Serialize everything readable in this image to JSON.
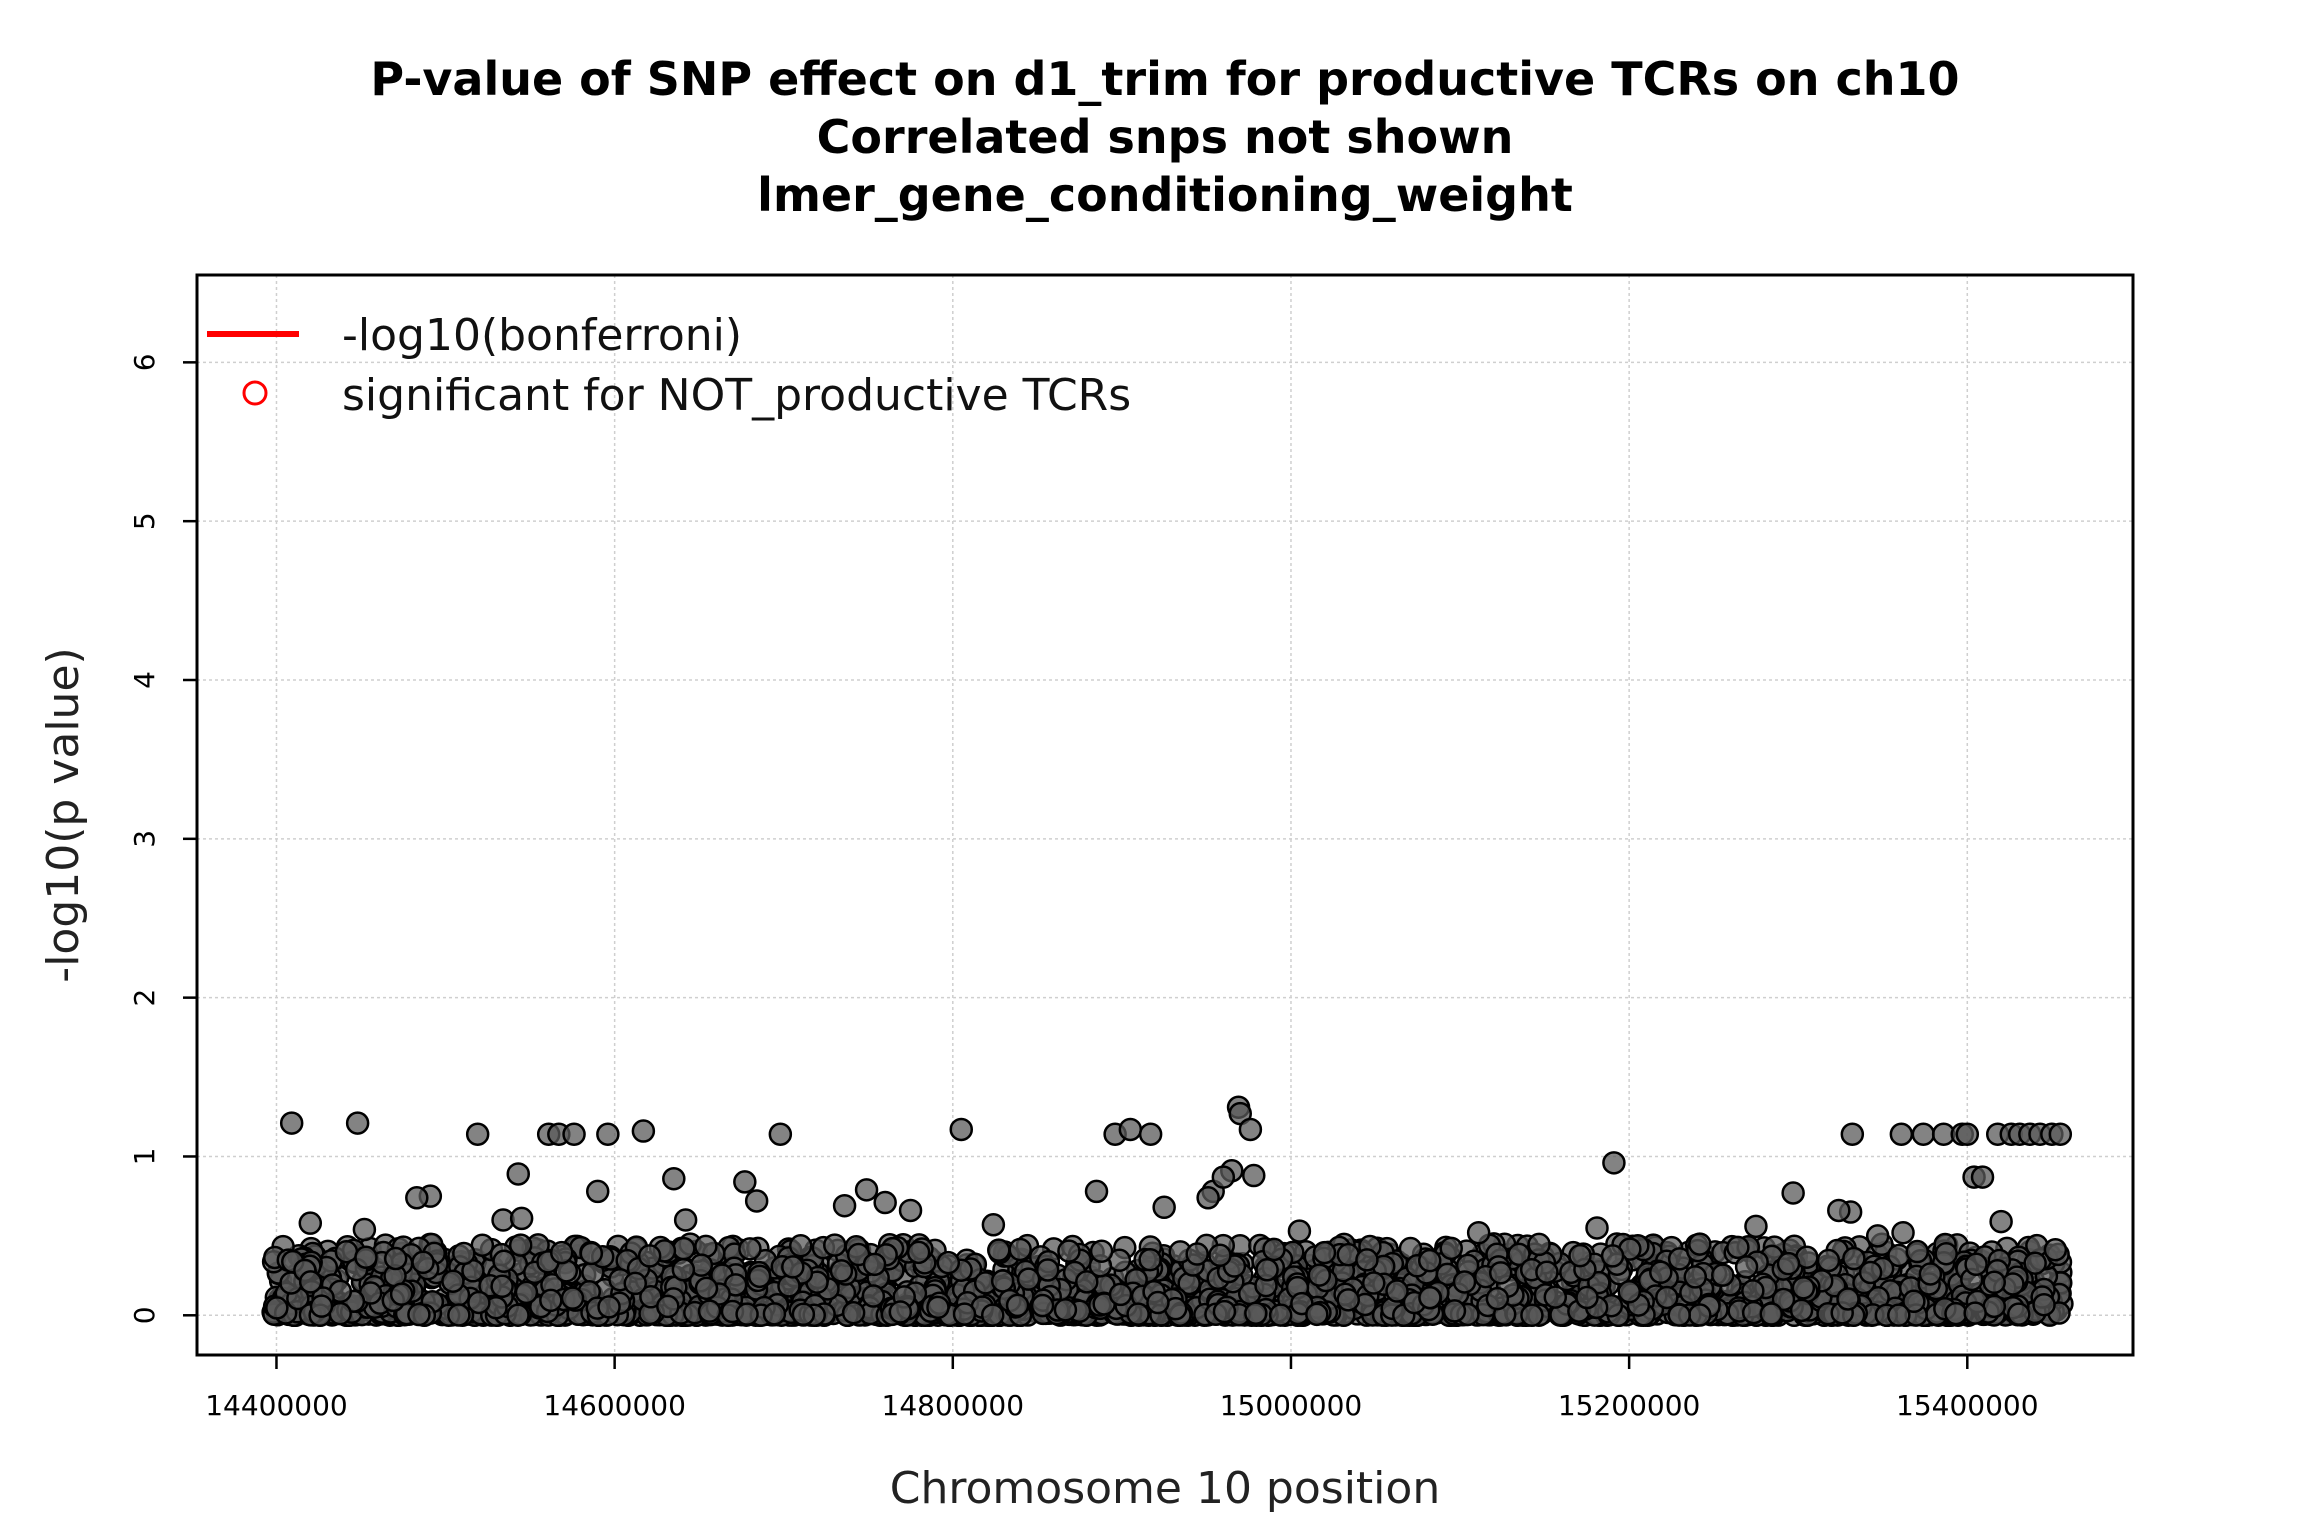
{
  "chart_data": {
    "type": "scatter",
    "title_lines": [
      "P-value of SNP effect on d1_trim for productive TCRs on ch10",
      "Correlated snps not shown",
      "lmer_gene_conditioning_weight"
    ],
    "xlabel": "Chromosome 10 position",
    "ylabel": "-log10(p value)",
    "xlim": [
      14353000,
      15498000
    ],
    "ylim": [
      -0.25,
      6.55
    ],
    "x_ticks": [
      14400000,
      14600000,
      14800000,
      15000000,
      15200000,
      15400000
    ],
    "x_tick_labels": [
      "14400000",
      "14600000",
      "14800000",
      "15000000",
      "15200000",
      "15400000"
    ],
    "y_ticks": [
      0,
      1,
      2,
      3,
      4,
      5,
      6
    ],
    "y_tick_labels": [
      "0",
      "1",
      "2",
      "3",
      "4",
      "5",
      "6"
    ],
    "grid": true,
    "legend_position": "top-left",
    "legend": [
      {
        "label": "-log10(bonferroni)",
        "marker": "line",
        "color": "#ff0000"
      },
      {
        "label": "significant for NOT_productive TCRs",
        "marker": "open-circle",
        "color": "#ff0000"
      }
    ],
    "point_color": "#5a5a5a",
    "notable_points": [
      {
        "x": 14409000,
        "y": 1.21
      },
      {
        "x": 14448000,
        "y": 1.21
      },
      {
        "x": 14519000,
        "y": 1.14
      },
      {
        "x": 14561000,
        "y": 1.14
      },
      {
        "x": 14567000,
        "y": 1.14
      },
      {
        "x": 14576000,
        "y": 1.14
      },
      {
        "x": 14596000,
        "y": 1.14
      },
      {
        "x": 14617000,
        "y": 1.16
      },
      {
        "x": 14698000,
        "y": 1.14
      },
      {
        "x": 14805000,
        "y": 1.17
      },
      {
        "x": 14896000,
        "y": 1.14
      },
      {
        "x": 14905000,
        "y": 1.17
      },
      {
        "x": 14917000,
        "y": 1.14
      },
      {
        "x": 14969000,
        "y": 1.31
      },
      {
        "x": 14970000,
        "y": 1.27
      },
      {
        "x": 14976000,
        "y": 1.17
      },
      {
        "x": 15191000,
        "y": 0.96
      },
      {
        "x": 15332000,
        "y": 1.14
      },
      {
        "x": 15361000,
        "y": 1.14
      },
      {
        "x": 15374000,
        "y": 1.14
      },
      {
        "x": 15386000,
        "y": 1.14
      },
      {
        "x": 15397000,
        "y": 1.14
      },
      {
        "x": 15400000,
        "y": 1.14
      },
      {
        "x": 15418000,
        "y": 1.14
      },
      {
        "x": 15426000,
        "y": 1.14
      },
      {
        "x": 15431000,
        "y": 1.14
      },
      {
        "x": 15437000,
        "y": 1.14
      },
      {
        "x": 15443000,
        "y": 1.14
      },
      {
        "x": 15450000,
        "y": 1.14
      },
      {
        "x": 15455000,
        "y": 1.14
      },
      {
        "x": 14491000,
        "y": 0.75
      },
      {
        "x": 14483000,
        "y": 0.74
      },
      {
        "x": 14543000,
        "y": 0.89
      },
      {
        "x": 14590000,
        "y": 0.78
      },
      {
        "x": 14635000,
        "y": 0.86
      },
      {
        "x": 14677000,
        "y": 0.84
      },
      {
        "x": 14749000,
        "y": 0.79
      },
      {
        "x": 14885000,
        "y": 0.78
      },
      {
        "x": 14954000,
        "y": 0.78
      },
      {
        "x": 14965000,
        "y": 0.91
      },
      {
        "x": 14978000,
        "y": 0.88
      },
      {
        "x": 14960000,
        "y": 0.87
      },
      {
        "x": 15297000,
        "y": 0.77
      },
      {
        "x": 15404000,
        "y": 0.87
      },
      {
        "x": 15409000,
        "y": 0.87
      },
      {
        "x": 15181000,
        "y": 0.55
      },
      {
        "x": 15111000,
        "y": 0.52
      },
      {
        "x": 15331000,
        "y": 0.65
      },
      {
        "x": 15324000,
        "y": 0.66
      },
      {
        "x": 15275000,
        "y": 0.56
      },
      {
        "x": 14420000,
        "y": 0.58
      },
      {
        "x": 14452000,
        "y": 0.54
      },
      {
        "x": 14534000,
        "y": 0.6
      },
      {
        "x": 14545000,
        "y": 0.61
      },
      {
        "x": 14642000,
        "y": 0.6
      },
      {
        "x": 14684000,
        "y": 0.72
      },
      {
        "x": 14736000,
        "y": 0.69
      },
      {
        "x": 14760000,
        "y": 0.71
      },
      {
        "x": 14775000,
        "y": 0.66
      },
      {
        "x": 14824000,
        "y": 0.57
      },
      {
        "x": 14925000,
        "y": 0.68
      },
      {
        "x": 14951000,
        "y": 0.74
      },
      {
        "x": 15005000,
        "y": 0.53
      },
      {
        "x": 15347000,
        "y": 0.5
      },
      {
        "x": 15362000,
        "y": 0.52
      },
      {
        "x": 15420000,
        "y": 0.59
      }
    ],
    "bulk_y_range": [
      0.0,
      0.45
    ],
    "bulk_x_range": [
      14398000,
      15456000
    ]
  }
}
